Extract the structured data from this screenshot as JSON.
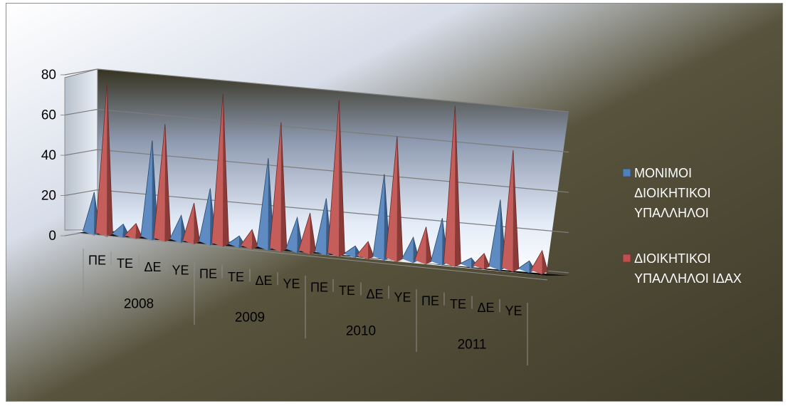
{
  "chart_data": {
    "type": "bar",
    "style": "3d-pyramid",
    "ylim": [
      0,
      80
    ],
    "yticks": [
      "0",
      "20",
      "40",
      "60",
      "80"
    ],
    "categories": [
      "ΠΕ",
      "ΤΕ",
      "ΔΕ",
      "ΥΕ",
      "ΠΕ",
      "ΤΕ",
      "ΔΕ",
      "ΥΕ",
      "ΠΕ",
      "ΤΕ",
      "ΔΕ",
      "ΥΕ",
      "ΠΕ",
      "ΤΕ",
      "ΔΕ",
      "ΥΕ"
    ],
    "groups": [
      {
        "label": "2008",
        "count": 4
      },
      {
        "label": "2009",
        "count": 4
      },
      {
        "label": "2010",
        "count": 4
      },
      {
        "label": "2011",
        "count": 4
      }
    ],
    "series": [
      {
        "name": "ΜΟΝΙΜΟΙ ΔΙΟΙΚΗΤΙΚΟΙ ΥΠΑΛΛΗΛΟΙ",
        "name_lines": [
          "ΜΟΝΙΜΟΙ",
          "ΔΙΟΙΚΗΤΙΚΟΙ",
          "ΥΠΑΛΛΗΛΟΙ"
        ],
        "color": "#4f81bd",
        "values": [
          20,
          5,
          49,
          12,
          27,
          4,
          45,
          16,
          27,
          4,
          42,
          11,
          22,
          3,
          34,
          4
        ]
      },
      {
        "name": "ΔΙΟΙΚΗΤΙΚΟΙ ΥΠΑΛΛΗΛΟΙ ΙΔΑΧ",
        "name_lines": [
          "ΔΙΟΙΚΗΤΙΚΟΙ",
          "ΥΠΑΛΛΗΛΟΙ ΙΔΑΧ"
        ],
        "color": "#c0504d",
        "values": [
          76,
          6,
          58,
          19,
          76,
          8,
          64,
          19,
          78,
          7,
          62,
          17,
          80,
          6,
          60,
          10
        ]
      }
    ],
    "legend_position": "right"
  }
}
